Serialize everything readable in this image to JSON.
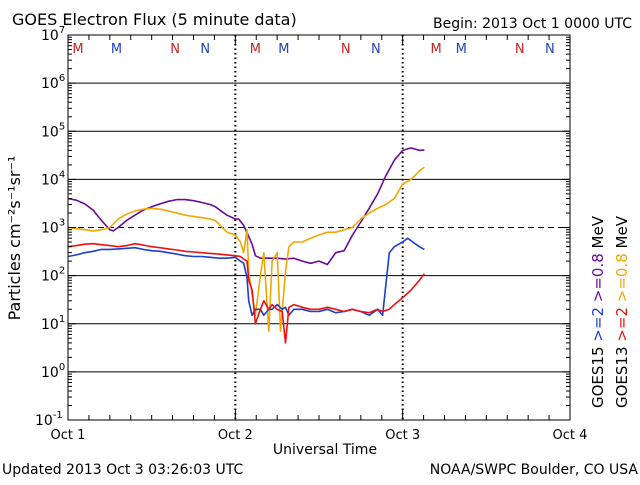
{
  "header": {
    "title": "GOES Electron Flux (5 minute data)",
    "begin": "Begin: 2013 Oct 1 0000 UTC"
  },
  "footer": {
    "updated": "Updated 2013 Oct  3 03:26:03 UTC",
    "credit": "NOAA/SWPC Boulder, CO USA"
  },
  "colors": {
    "goes15_2mev": "#1a3fd0",
    "goes13_2mev": "#ee1111",
    "goes15_08mev": "#6a0a9a",
    "goes13_08mev": "#f0a800",
    "marker_m": "#cc2222",
    "marker_n": "#cc2222",
    "marker_m_alt": "#2244bb",
    "marker_n_alt": "#2244bb"
  },
  "chart_data": {
    "type": "line",
    "title": "GOES Electron Flux (5 minute data)",
    "xlabel": "Universal Time",
    "ylabel": "Particles cm⁻²s⁻¹sr⁻¹",
    "y_scale": "log",
    "ylim": [
      0.1,
      10000000
    ],
    "xlim": [
      "2013-10-01 00:00",
      "2013-10-04 00:00"
    ],
    "x_tick_labels": [
      "Oct 1",
      "Oct 2",
      "Oct 3",
      "Oct 4"
    ],
    "y_tick_labels": [
      {
        "base": "10",
        "exp": "-1"
      },
      {
        "base": "10",
        "exp": "0"
      },
      {
        "base": "10",
        "exp": "1"
      },
      {
        "base": "10",
        "exp": "2"
      },
      {
        "base": "10",
        "exp": "3"
      },
      {
        "base": "10",
        "exp": "4"
      },
      {
        "base": "10",
        "exp": "5"
      },
      {
        "base": "10",
        "exp": "6"
      },
      {
        "base": "10",
        "exp": "7"
      }
    ],
    "threshold_line": {
      "value": 1000,
      "style": "dashed"
    },
    "grid": "horizontal at each decade; dotted vertical at day boundaries",
    "legend": {
      "placement": "right-outside",
      "groups": [
        {
          "label": "GOES15",
          "entries": [
            {
              "label": ">=2",
              "color_key": "goes15_2mev"
            },
            {
              "label": ">=0.8",
              "color_key": "goes15_08mev"
            }
          ]
        },
        {
          "label": "GOES13",
          "entries": [
            {
              "label": ">=2",
              "color_key": "goes13_2mev"
            },
            {
              "label": ">=0.8",
              "color_key": "goes13_08mev"
            }
          ]
        }
      ],
      "unit": "MeV"
    },
    "markers": [
      {
        "label": "M",
        "day": 0.06,
        "color_key": "marker_m"
      },
      {
        "label": "M",
        "day": 0.29,
        "color_key": "marker_m_alt"
      },
      {
        "label": "N",
        "day": 0.64,
        "color_key": "marker_n"
      },
      {
        "label": "N",
        "day": 0.82,
        "color_key": "marker_n_alt"
      },
      {
        "label": "M",
        "day": 1.12,
        "color_key": "marker_m"
      },
      {
        "label": "M",
        "day": 1.29,
        "color_key": "marker_m_alt"
      },
      {
        "label": "N",
        "day": 1.66,
        "color_key": "marker_n"
      },
      {
        "label": "N",
        "day": 1.84,
        "color_key": "marker_n_alt"
      },
      {
        "label": "M",
        "day": 2.2,
        "color_key": "marker_m"
      },
      {
        "label": "M",
        "day": 2.35,
        "color_key": "marker_m_alt"
      },
      {
        "label": "N",
        "day": 2.7,
        "color_key": "marker_n"
      },
      {
        "label": "N",
        "day": 2.88,
        "color_key": "marker_n_alt"
      }
    ],
    "series": [
      {
        "key": "goes15_08mev",
        "x": [
          0.0,
          0.05,
          0.1,
          0.15,
          0.2,
          0.25,
          0.27,
          0.3,
          0.35,
          0.4,
          0.45,
          0.5,
          0.55,
          0.6,
          0.65,
          0.7,
          0.75,
          0.8,
          0.85,
          0.88,
          0.9,
          0.95,
          1.0,
          1.02,
          1.05,
          1.08,
          1.1,
          1.12,
          1.15,
          1.2,
          1.25,
          1.3,
          1.35,
          1.4,
          1.45,
          1.5,
          1.55,
          1.6,
          1.65,
          1.7,
          1.75,
          1.8,
          1.85,
          1.9,
          1.95,
          2.0,
          2.05,
          2.1,
          2.13
        ],
        "y": [
          4000,
          3700,
          3100,
          2300,
          1400,
          900,
          850,
          1000,
          1400,
          1800,
          2300,
          2700,
          3100,
          3500,
          3800,
          3800,
          3600,
          3300,
          3000,
          2700,
          2400,
          1800,
          1500,
          1500,
          1100,
          650,
          450,
          260,
          230,
          230,
          230,
          220,
          230,
          200,
          180,
          200,
          170,
          300,
          330,
          700,
          1300,
          2500,
          5000,
          12000,
          25000,
          40000,
          45000,
          40000,
          41000
        ]
      },
      {
        "key": "goes13_08mev",
        "x": [
          0.0,
          0.05,
          0.1,
          0.15,
          0.2,
          0.25,
          0.3,
          0.35,
          0.4,
          0.45,
          0.5,
          0.55,
          0.6,
          0.65,
          0.7,
          0.75,
          0.8,
          0.85,
          0.88,
          0.9,
          0.95,
          1.0,
          1.03,
          1.05,
          1.07,
          1.08,
          1.1,
          1.12,
          1.15,
          1.17,
          1.2,
          1.22,
          1.25,
          1.27,
          1.3,
          1.32,
          1.35,
          1.4,
          1.45,
          1.5,
          1.55,
          1.6,
          1.65,
          1.7,
          1.75,
          1.8,
          1.85,
          1.9,
          1.95,
          2.0,
          2.05,
          2.1,
          2.13
        ],
        "y": [
          1000,
          950,
          900,
          850,
          900,
          1000,
          1500,
          1900,
          2200,
          2400,
          2500,
          2400,
          2200,
          2000,
          1800,
          1700,
          1600,
          1500,
          1400,
          1200,
          800,
          700,
          500,
          300,
          900,
          120,
          40,
          15,
          100,
          300,
          7,
          200,
          300,
          7,
          120,
          400,
          500,
          500,
          600,
          700,
          800,
          800,
          900,
          1000,
          1500,
          2000,
          2500,
          3000,
          4000,
          8000,
          10000,
          15000,
          18000
        ]
      },
      {
        "key": "goes15_2mev",
        "x": [
          0.0,
          0.05,
          0.1,
          0.15,
          0.2,
          0.25,
          0.3,
          0.35,
          0.4,
          0.45,
          0.5,
          0.55,
          0.6,
          0.65,
          0.7,
          0.75,
          0.8,
          0.85,
          0.9,
          0.95,
          1.0,
          1.03,
          1.05,
          1.07,
          1.08,
          1.1,
          1.12,
          1.15,
          1.17,
          1.2,
          1.22,
          1.25,
          1.28,
          1.3,
          1.32,
          1.35,
          1.4,
          1.45,
          1.5,
          1.55,
          1.6,
          1.65,
          1.7,
          1.75,
          1.8,
          1.85,
          1.88,
          1.92,
          1.95,
          2.0,
          2.03,
          2.06,
          2.1,
          2.13
        ],
        "y": [
          250,
          270,
          300,
          320,
          350,
          350,
          360,
          370,
          380,
          350,
          330,
          320,
          300,
          280,
          260,
          250,
          250,
          240,
          230,
          230,
          240,
          200,
          180,
          90,
          30,
          15,
          20,
          20,
          15,
          20,
          20,
          25,
          20,
          22,
          15,
          20,
          20,
          18,
          18,
          20,
          17,
          18,
          20,
          18,
          15,
          20,
          15,
          300,
          400,
          500,
          600,
          500,
          400,
          350
        ]
      },
      {
        "key": "goes13_2mev",
        "x": [
          0.0,
          0.05,
          0.1,
          0.15,
          0.2,
          0.25,
          0.3,
          0.35,
          0.4,
          0.45,
          0.5,
          0.55,
          0.6,
          0.65,
          0.7,
          0.75,
          0.8,
          0.85,
          0.9,
          0.95,
          1.0,
          1.03,
          1.05,
          1.07,
          1.08,
          1.1,
          1.12,
          1.15,
          1.17,
          1.2,
          1.22,
          1.25,
          1.28,
          1.3,
          1.32,
          1.35,
          1.4,
          1.45,
          1.5,
          1.55,
          1.6,
          1.65,
          1.7,
          1.75,
          1.8,
          1.85,
          1.88,
          1.92,
          1.95,
          2.0,
          2.05,
          2.1,
          2.13
        ],
        "y": [
          400,
          420,
          450,
          460,
          440,
          420,
          400,
          420,
          460,
          430,
          400,
          380,
          360,
          340,
          320,
          310,
          300,
          290,
          280,
          270,
          260,
          250,
          220,
          200,
          80,
          50,
          10,
          20,
          30,
          20,
          25,
          20,
          18,
          4,
          22,
          25,
          22,
          20,
          20,
          22,
          20,
          18,
          20,
          18,
          17,
          20,
          18,
          20,
          25,
          35,
          50,
          80,
          110
        ]
      }
    ]
  }
}
